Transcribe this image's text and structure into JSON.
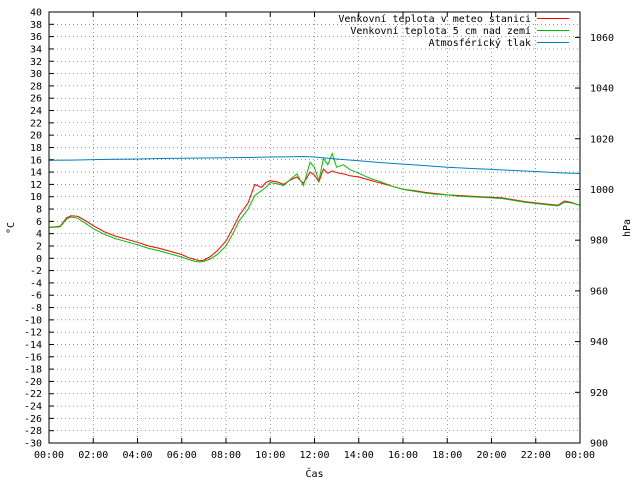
{
  "chart_data": {
    "type": "line",
    "xlabel": "Čas",
    "ylabel": "°C",
    "y2label": "hPa",
    "xlim": [
      0,
      24
    ],
    "ylim": [
      -30,
      40
    ],
    "y2lim": [
      900,
      1070
    ],
    "grid": true,
    "legend_position": "top-right",
    "x_tick_labels": [
      "00:00",
      "02:00",
      "04:00",
      "06:00",
      "08:00",
      "10:00",
      "12:00",
      "14:00",
      "16:00",
      "18:00",
      "20:00",
      "22:00",
      "00:00"
    ],
    "y_ticks": [
      -30,
      -28,
      -26,
      -24,
      -22,
      -20,
      -18,
      -16,
      -14,
      -12,
      -10,
      -8,
      -6,
      -4,
      -2,
      0,
      2,
      4,
      6,
      8,
      10,
      12,
      14,
      16,
      18,
      20,
      22,
      24,
      26,
      28,
      30,
      32,
      34,
      36,
      38,
      40
    ],
    "y2_ticks": [
      900,
      920,
      940,
      960,
      980,
      1000,
      1020,
      1040,
      1060
    ],
    "series": [
      {
        "name": "Venkovní teplota v meteo stanici",
        "color": "#ff0000",
        "axis": "left",
        "x": [
          0,
          0.5,
          0.8,
          1.0,
          1.3,
          1.6,
          2.0,
          2.5,
          3.0,
          3.5,
          4.0,
          4.5,
          5.0,
          5.5,
          6.0,
          6.3,
          6.6,
          6.8,
          7.0,
          7.3,
          7.6,
          8.0,
          8.3,
          8.6,
          9.0,
          9.3,
          9.6,
          9.8,
          10.0,
          10.3,
          10.6,
          10.9,
          11.2,
          11.5,
          11.8,
          12.0,
          12.2,
          12.4,
          12.6,
          12.8,
          13.0,
          13.3,
          13.6,
          14.0,
          14.5,
          15.0,
          15.5,
          16.0,
          16.5,
          17.0,
          17.5,
          18.0,
          18.5,
          19.0,
          19.5,
          20.0,
          20.5,
          21.0,
          21.5,
          22.0,
          22.5,
          23.0,
          23.3,
          23.6,
          24.0
        ],
        "y": [
          5,
          5.2,
          6.6,
          6.9,
          6.8,
          6.2,
          5.3,
          4.3,
          3.6,
          3.1,
          2.6,
          2.0,
          1.6,
          1.1,
          0.6,
          0.1,
          -0.2,
          -0.4,
          -0.3,
          0.3,
          1.2,
          2.8,
          4.8,
          7.0,
          9.0,
          12.0,
          11.5,
          12.3,
          12.6,
          12.4,
          12.0,
          12.7,
          13.2,
          12.2,
          14.0,
          13.5,
          12.4,
          14.5,
          13.8,
          14.2,
          13.9,
          13.7,
          13.4,
          13.2,
          12.7,
          12.2,
          11.7,
          11.2,
          11.0,
          10.7,
          10.5,
          10.3,
          10.2,
          10.1,
          10.0,
          9.9,
          9.8,
          9.5,
          9.2,
          9.0,
          8.8,
          8.6,
          9.3,
          9.1,
          8.6
        ]
      },
      {
        "name": "Venkovní teplota 5 cm nad zemí",
        "color": "#00c000",
        "axis": "left",
        "x": [
          0,
          0.5,
          0.8,
          1.0,
          1.3,
          1.6,
          2.0,
          2.5,
          3.0,
          3.5,
          4.0,
          4.5,
          5.0,
          5.5,
          6.0,
          6.3,
          6.6,
          6.8,
          7.0,
          7.3,
          7.6,
          8.0,
          8.3,
          8.6,
          9.0,
          9.3,
          9.6,
          9.8,
          10.0,
          10.3,
          10.6,
          10.9,
          11.2,
          11.5,
          11.8,
          12.0,
          12.2,
          12.4,
          12.6,
          12.8,
          13.0,
          13.3,
          13.6,
          14.0,
          14.5,
          15.0,
          15.5,
          16.0,
          16.5,
          17.0,
          17.5,
          18.0,
          18.5,
          19.0,
          19.5,
          20.0,
          20.5,
          21.0,
          21.5,
          22.0,
          22.5,
          23.0,
          23.3,
          23.6,
          24.0
        ],
        "y": [
          5,
          5.1,
          6.4,
          6.7,
          6.5,
          5.8,
          4.8,
          3.9,
          3.2,
          2.7,
          2.2,
          1.6,
          1.2,
          0.7,
          0.2,
          -0.2,
          -0.5,
          -0.6,
          -0.5,
          -0.1,
          0.6,
          2.0,
          3.9,
          6.1,
          8.0,
          10.2,
          11.0,
          11.5,
          12.3,
          12.1,
          11.8,
          12.8,
          13.7,
          11.8,
          15.6,
          14.7,
          12.6,
          16.2,
          15.2,
          17.0,
          14.8,
          15.2,
          14.4,
          13.8,
          13.0,
          12.4,
          11.7,
          11.2,
          10.9,
          10.6,
          10.4,
          10.3,
          10.1,
          10.0,
          9.9,
          9.8,
          9.7,
          9.4,
          9.1,
          8.9,
          8.7,
          8.5,
          9.1,
          9.0,
          8.6
        ]
      },
      {
        "name": "Atmosférický tlak",
        "color": "#0080c0",
        "axis": "right",
        "x": [
          0,
          1,
          2,
          3,
          4,
          5,
          6,
          7,
          8,
          9,
          10,
          11,
          11.5,
          12,
          12.5,
          13,
          14,
          15,
          16,
          17,
          18,
          19,
          20,
          21,
          22,
          23,
          24
        ],
        "y": [
          1011.5,
          1011.6,
          1011.8,
          1011.9,
          1012.0,
          1012.2,
          1012.3,
          1012.4,
          1012.5,
          1012.6,
          1012.8,
          1012.9,
          1013.0,
          1012.8,
          1012.4,
          1012.0,
          1011.3,
          1010.6,
          1010.0,
          1009.4,
          1008.8,
          1008.3,
          1007.9,
          1007.5,
          1007.1,
          1006.6,
          1006.3
        ]
      }
    ]
  }
}
